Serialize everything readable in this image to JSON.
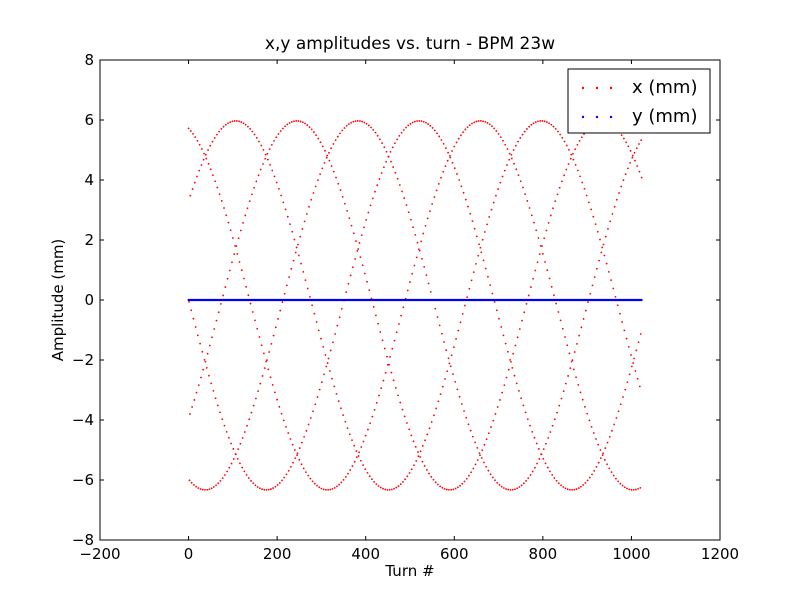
{
  "chart_data": {
    "type": "scatter",
    "title": "x,y amplitudes vs. turn - BPM 23w",
    "xlabel": "Turn #",
    "ylabel": "Amplitude (mm)",
    "xlim": [
      -200,
      1200
    ],
    "ylim": [
      -8,
      8
    ],
    "xticks": [
      -200,
      0,
      200,
      400,
      600,
      800,
      1000,
      1200
    ],
    "yticks": [
      -8,
      -6,
      -4,
      -2,
      0,
      2,
      4,
      6,
      8
    ],
    "xtick_labels": [
      "−200",
      "0",
      "200",
      "400",
      "600",
      "800",
      "1000",
      "1200"
    ],
    "ytick_labels": [
      "−8",
      "−6",
      "−4",
      "−2",
      "0",
      "2",
      "4",
      "6",
      "8"
    ],
    "grid": false,
    "legend_position": "top-right",
    "turns": {
      "start": 0,
      "end": 1023
    },
    "series": [
      {
        "name": "x (mm)",
        "color": "#ff0000",
        "marker": "dot",
        "model": "sampled sinusoid",
        "amplitude": 6.15,
        "offset": -0.18,
        "tune": 0.2,
        "beat_period_turns": 138,
        "visible_strands": 5,
        "max": 5.95,
        "min": -6.3
      },
      {
        "name": "y (mm)",
        "color": "#0000ff",
        "marker": "dot",
        "value": 0.0
      }
    ]
  }
}
